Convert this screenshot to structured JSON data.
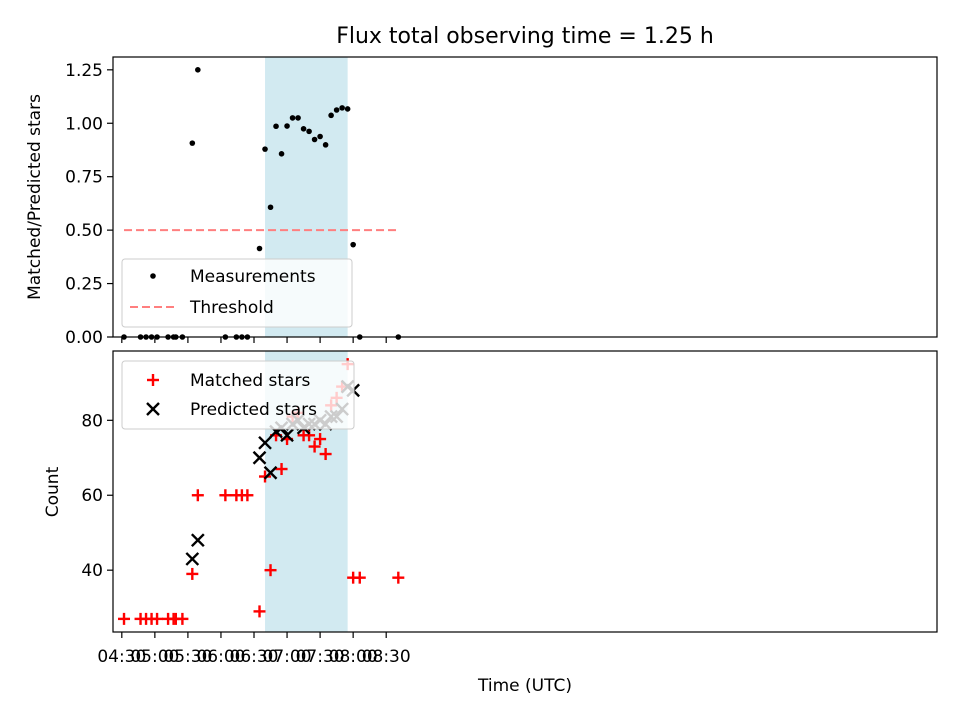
{
  "chart_data": {
    "type": "scatter",
    "title": "Flux total observing time = 1.25 h",
    "xlabel": "Time (UTC)",
    "x_unit": "minutes",
    "xlim": [
      262,
      1010
    ],
    "xticks": [
      270,
      300,
      330,
      360,
      390,
      420,
      450,
      480,
      510
    ],
    "xtick_labels": [
      "04:30",
      "05:00",
      "05:30",
      "06:00",
      "06:30",
      "07:00",
      "07:30",
      "08:00",
      "08:30"
    ],
    "shaded_span": [
      400,
      475
    ],
    "shade_color": "#add8e6",
    "panels": [
      {
        "id": "ratio",
        "ylabel": "Matched/Predicted stars",
        "ylim": [
          0,
          1.31
        ],
        "yticks": [
          0,
          0.25,
          0.5,
          0.75,
          1.0,
          1.25
        ],
        "ytick_labels": [
          "0.00",
          "0.25",
          "0.50",
          "0.75",
          "1.00",
          "1.25"
        ],
        "legend_position": "lower-left",
        "series": [
          {
            "name": "Measurements",
            "marker": "dot",
            "color": "#000000",
            "points": [
              [
                272,
                0
              ],
              [
                287,
                0
              ],
              [
                292,
                0
              ],
              [
                297,
                0
              ],
              [
                302,
                0
              ],
              [
                312,
                0
              ],
              [
                317,
                0
              ],
              [
                319,
                0
              ],
              [
                325,
                0
              ],
              [
                334,
                0.907
              ],
              [
                339,
                1.25
              ],
              [
                364,
                0
              ],
              [
                374,
                0
              ],
              [
                379,
                0
              ],
              [
                384,
                0
              ],
              [
                395,
                0.414
              ],
              [
                400,
                0.879
              ],
              [
                405,
                0.607
              ],
              [
                410,
                0.986
              ],
              [
                415,
                0.857
              ],
              [
                420,
                0.987
              ],
              [
                425,
                1.025
              ],
              [
                430,
                1.025
              ],
              [
                435,
                0.974
              ],
              [
                440,
                0.962
              ],
              [
                445,
                0.924
              ],
              [
                450,
                0.938
              ],
              [
                455,
                0.899
              ],
              [
                460,
                1.037
              ],
              [
                465,
                1.062
              ],
              [
                470,
                1.072
              ],
              [
                475,
                1.067
              ],
              [
                480,
                0.432
              ],
              [
                486,
                0
              ],
              [
                521,
                0
              ]
            ]
          },
          {
            "name": "Threshold",
            "marker": "dashed-line",
            "color": "#ff7f7f",
            "points": [
              [
                272,
                0.5
              ],
              [
                521,
                0.5
              ]
            ]
          }
        ]
      },
      {
        "id": "count",
        "ylabel": "Count",
        "ylim": [
          23.5,
          98.5
        ],
        "yticks": [
          40,
          60,
          80
        ],
        "ytick_labels": [
          "40",
          "60",
          "80"
        ],
        "legend_position": "upper-left",
        "series": [
          {
            "name": "Matched stars",
            "marker": "plus",
            "color": "#ff0000",
            "points": [
              [
                272,
                27
              ],
              [
                287,
                27
              ],
              [
                292,
                27
              ],
              [
                297,
                27
              ],
              [
                302,
                27
              ],
              [
                312,
                27
              ],
              [
                317,
                27
              ],
              [
                319,
                27
              ],
              [
                325,
                27
              ],
              [
                334,
                39
              ],
              [
                339,
                60
              ],
              [
                364,
                60
              ],
              [
                374,
                60
              ],
              [
                379,
                60
              ],
              [
                384,
                60
              ],
              [
                395,
                29
              ],
              [
                400,
                65
              ],
              [
                405,
                40
              ],
              [
                410,
                76
              ],
              [
                415,
                67
              ],
              [
                420,
                75
              ],
              [
                425,
                81
              ],
              [
                430,
                82
              ],
              [
                435,
                76
              ],
              [
                440,
                76
              ],
              [
                445,
                73
              ],
              [
                450,
                75
              ],
              [
                455,
                71
              ],
              [
                460,
                84
              ],
              [
                465,
                86
              ],
              [
                470,
                89
              ],
              [
                475,
                95
              ],
              [
                480,
                38
              ],
              [
                486,
                38
              ],
              [
                521,
                38
              ]
            ]
          },
          {
            "name": "Predicted stars",
            "marker": "x",
            "color": "#000000",
            "points": [
              [
                334,
                43
              ],
              [
                339,
                48
              ],
              [
                395,
                70
              ],
              [
                400,
                74
              ],
              [
                405,
                66
              ],
              [
                410,
                77
              ],
              [
                415,
                78
              ],
              [
                420,
                76
              ],
              [
                425,
                79
              ],
              [
                430,
                80
              ],
              [
                435,
                78
              ],
              [
                440,
                79
              ],
              [
                445,
                79
              ],
              [
                450,
                80
              ],
              [
                455,
                79
              ],
              [
                460,
                81
              ],
              [
                465,
                81
              ],
              [
                470,
                83
              ],
              [
                475,
                89
              ],
              [
                480,
                88
              ]
            ]
          }
        ]
      }
    ]
  }
}
